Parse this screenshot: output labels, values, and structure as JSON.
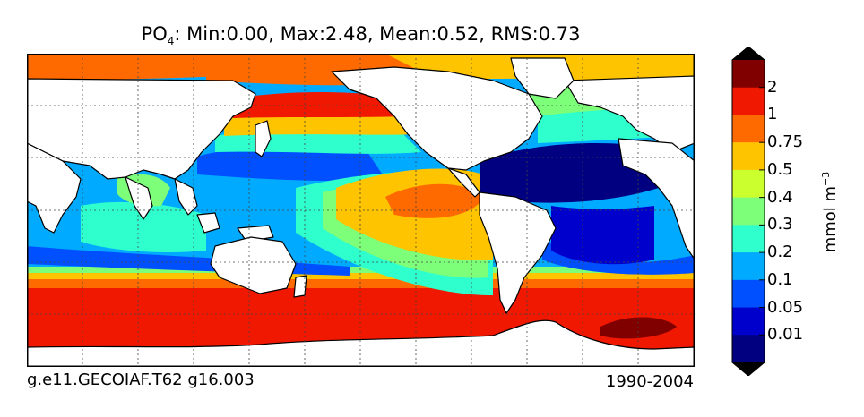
{
  "title": {
    "variable": "PO",
    "subscript": "4",
    "stats": ": Min:0.00, Max:2.48, Mean:0.52, RMS:0.73"
  },
  "footer": {
    "case_name": "g.e11.GECOIAF.T62 g16.003",
    "period": "1990-2004"
  },
  "colorbar": {
    "unit_base": "mmol m",
    "unit_exp": "−3",
    "ticks": [
      "2",
      "1",
      "0.75",
      "0.5",
      "0.4",
      "0.3",
      "0.2",
      "0.1",
      "0.05",
      "0.01"
    ],
    "colors": [
      "#000080",
      "#0000cd",
      "#0050ff",
      "#00aaff",
      "#2effcc",
      "#7dff7a",
      "#ccff2e",
      "#ffc400",
      "#ff6a00",
      "#f01800",
      "#800000"
    ],
    "over_color": "#000000",
    "under_color": "#000000"
  },
  "map_colors": {
    "land": "#ffffff",
    "coast": "#000000",
    "grid": "#444444"
  }
}
